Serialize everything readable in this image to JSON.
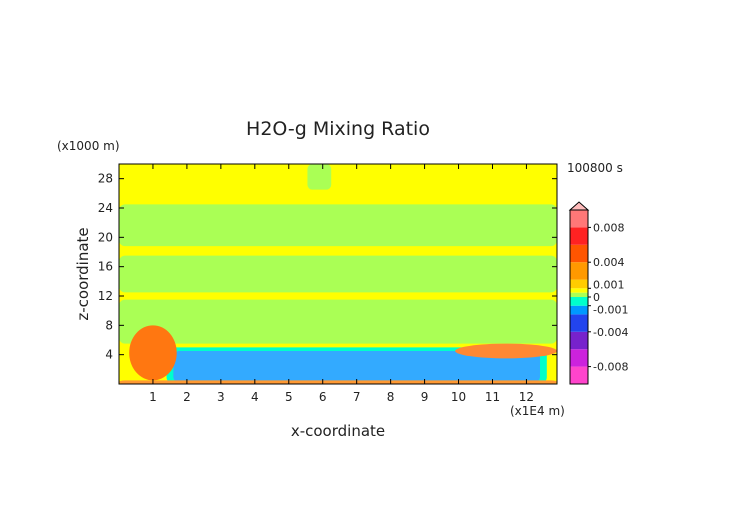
{
  "chart_data": {
    "type": "heatmap",
    "title": "H2O-g Mixing Ratio",
    "xlabel": "x-coordinate",
    "ylabel": "z-coordinate",
    "x_unit": "(x1E4 m)",
    "y_unit": "(x1000 m)",
    "time_label": "100800 s",
    "xlim": [
      0,
      12.9
    ],
    "ylim": [
      0,
      30
    ],
    "x_ticks": [
      "1",
      "2",
      "3",
      "4",
      "5",
      "6",
      "7",
      "8",
      "9",
      "10",
      "11",
      "12"
    ],
    "y_ticks": [
      "4",
      "8",
      "12",
      "16",
      "20",
      "24",
      "28"
    ],
    "colorbar": {
      "tick_labels": [
        "0.008",
        "0.004",
        "0.001",
        "0",
        "-0.001",
        "-0.004",
        "-0.008"
      ],
      "tick_values": [
        0.008,
        0.004,
        0.001,
        0,
        -0.001,
        -0.004,
        -0.008
      ],
      "range": [
        -0.01,
        0.01
      ]
    },
    "regions": [
      {
        "name": "background-positive",
        "value": 0.0003,
        "color": "#ffff00",
        "x": [
          0,
          12.9
        ],
        "z": [
          0,
          30
        ]
      },
      {
        "name": "upper-negative-band",
        "value": -0.0003,
        "color": "#aaff55",
        "x": [
          0,
          12.9
        ],
        "z": [
          18.8,
          24.5
        ]
      },
      {
        "name": "mid-negative-band",
        "value": -0.0003,
        "color": "#aaff55",
        "x": [
          0,
          12.9
        ],
        "z": [
          12.5,
          17.5
        ]
      },
      {
        "name": "lower-negative-band",
        "value": -0.0003,
        "color": "#aaff55",
        "x": [
          0,
          12.9
        ],
        "z": [
          5.5,
          11.5
        ]
      },
      {
        "name": "low-level-dry-layer",
        "value": -0.003,
        "color": "#33aaff",
        "x": [
          1.6,
          12.4
        ],
        "z": [
          0.2,
          4.5
        ]
      },
      {
        "name": "cyan-margin",
        "value": -0.0015,
        "color": "#00ffcc",
        "x": [
          1.4,
          12.6
        ],
        "z": [
          0.1,
          5.0
        ]
      },
      {
        "name": "left-moist-plume",
        "value": 0.004,
        "color": "#ff7711",
        "x": [
          0.3,
          1.7
        ],
        "z": [
          0.5,
          8.0
        ]
      },
      {
        "name": "right-moist-layer",
        "value": 0.003,
        "color": "#ff8833",
        "x": [
          9.9,
          12.9
        ],
        "z": [
          3.5,
          5.5
        ]
      },
      {
        "name": "surface-moist-layer",
        "value": 0.002,
        "color": "#ff9933",
        "x": [
          0,
          12.9
        ],
        "z": [
          0,
          0.5
        ]
      }
    ]
  }
}
